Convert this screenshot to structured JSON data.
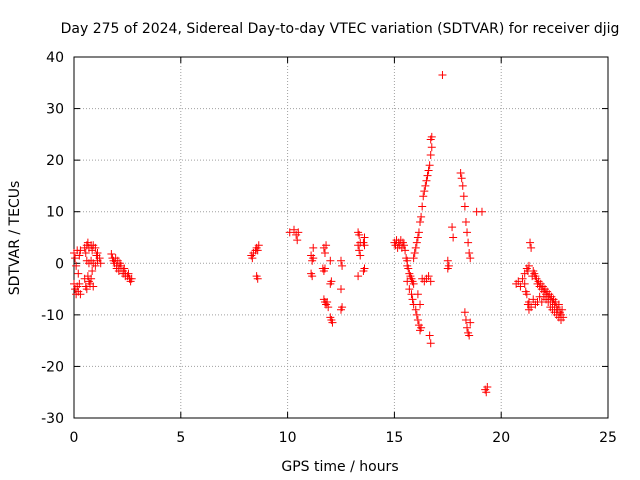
{
  "chart_data": {
    "type": "scatter",
    "title": "Day 275 of 2024, Sidereal Day-to-day VTEC variation (SDTVAR) for receiver djig",
    "xlabel": "GPS time / hours",
    "ylabel": "SDTVAR / TECUs",
    "xlim": [
      0,
      25
    ],
    "ylim": [
      -30,
      40
    ],
    "x_ticks": [
      0,
      5,
      10,
      15,
      20,
      25
    ],
    "y_ticks": [
      -30,
      -20,
      -10,
      0,
      10,
      20,
      30,
      40
    ],
    "grid": true,
    "marker": "plus",
    "colors": {
      "points": "#ff0000",
      "grid": "#a0a0a0",
      "axes": "#000000"
    },
    "series": [
      {
        "name": "SDTVAR",
        "points": [
          [
            0.0,
            2.0
          ],
          [
            0.05,
            1.0
          ],
          [
            0.1,
            -0.5
          ],
          [
            0.15,
            2.5
          ],
          [
            0.2,
            -2.0
          ],
          [
            0.25,
            1.5
          ],
          [
            0.3,
            2.5
          ],
          [
            0.0,
            -4.0
          ],
          [
            0.05,
            -5.0
          ],
          [
            0.1,
            -6.0
          ],
          [
            0.15,
            -4.5
          ],
          [
            0.2,
            -5.5
          ],
          [
            0.25,
            -4.0
          ],
          [
            0.3,
            -6.0
          ],
          [
            0.5,
            -3.0
          ],
          [
            0.55,
            -4.5
          ],
          [
            0.6,
            -5.0
          ],
          [
            0.65,
            -2.5
          ],
          [
            0.7,
            -3.5
          ],
          [
            0.75,
            -4.0
          ],
          [
            0.8,
            -3.0
          ],
          [
            0.85,
            -1.5
          ],
          [
            0.9,
            -4.5
          ],
          [
            0.5,
            3.0
          ],
          [
            0.55,
            2.0
          ],
          [
            0.6,
            3.5
          ],
          [
            0.65,
            4.0
          ],
          [
            0.7,
            3.0
          ],
          [
            0.8,
            3.5
          ],
          [
            0.85,
            2.5
          ],
          [
            0.9,
            3.5
          ],
          [
            1.0,
            3.0
          ],
          [
            1.05,
            1.5
          ],
          [
            1.1,
            2.0
          ],
          [
            0.6,
            0.5
          ],
          [
            0.7,
            0.0
          ],
          [
            0.8,
            0.5
          ],
          [
            0.9,
            0.0
          ],
          [
            1.0,
            -0.5
          ],
          [
            1.1,
            0.5
          ],
          [
            1.2,
            1.0
          ],
          [
            1.25,
            0.0
          ],
          [
            1.75,
            1.8
          ],
          [
            1.8,
            1.0
          ],
          [
            1.85,
            0.5
          ],
          [
            1.9,
            0.0
          ],
          [
            1.95,
            1.0
          ],
          [
            2.0,
            -0.5
          ],
          [
            2.05,
            0.5
          ],
          [
            2.1,
            -1.0
          ],
          [
            2.15,
            0.0
          ],
          [
            2.2,
            -0.5
          ],
          [
            2.3,
            -1.5
          ],
          [
            2.35,
            -1.0
          ],
          [
            2.4,
            -2.0
          ],
          [
            2.5,
            -2.5
          ],
          [
            2.55,
            -2.0
          ],
          [
            2.6,
            -3.0
          ],
          [
            2.65,
            -3.5
          ],
          [
            2.7,
            -3.0
          ],
          [
            2.0,
            -1.0
          ],
          [
            2.1,
            -1.5
          ],
          [
            2.2,
            -1.0
          ],
          [
            2.3,
            -2.0
          ],
          [
            2.4,
            -2.5
          ],
          [
            8.3,
            1.5
          ],
          [
            8.35,
            1.0
          ],
          [
            8.4,
            2.0
          ],
          [
            8.5,
            2.5
          ],
          [
            8.55,
            3.0
          ],
          [
            8.6,
            2.5
          ],
          [
            8.65,
            3.5
          ],
          [
            8.55,
            -2.5
          ],
          [
            8.6,
            -3.0
          ],
          [
            10.1,
            6.0
          ],
          [
            10.3,
            6.5
          ],
          [
            10.4,
            5.5
          ],
          [
            10.5,
            6.0
          ],
          [
            10.45,
            4.5
          ],
          [
            11.1,
            1.5
          ],
          [
            11.15,
            0.5
          ],
          [
            11.2,
            1.0
          ],
          [
            11.1,
            -2.0
          ],
          [
            11.15,
            -2.5
          ],
          [
            11.2,
            3.0
          ],
          [
            11.7,
            3.0
          ],
          [
            11.75,
            2.0
          ],
          [
            11.8,
            3.5
          ],
          [
            11.65,
            -1.0
          ],
          [
            11.7,
            -1.5
          ],
          [
            11.75,
            -1.0
          ],
          [
            11.7,
            -7.0
          ],
          [
            11.75,
            -7.5
          ],
          [
            11.8,
            -8.0
          ],
          [
            11.85,
            -7.5
          ],
          [
            11.9,
            -8.5
          ],
          [
            12.0,
            -4.0
          ],
          [
            12.05,
            -3.5
          ],
          [
            12.0,
            0.5
          ],
          [
            12.05,
            -11.0
          ],
          [
            12.1,
            -11.5
          ],
          [
            12.0,
            -10.5
          ],
          [
            12.5,
            0.5
          ],
          [
            12.55,
            -0.5
          ],
          [
            12.5,
            -5.0
          ],
          [
            12.55,
            -8.5
          ],
          [
            12.5,
            -9.0
          ],
          [
            13.3,
            6.0
          ],
          [
            13.35,
            5.5
          ],
          [
            13.4,
            4.0
          ],
          [
            13.3,
            3.5
          ],
          [
            13.35,
            2.5
          ],
          [
            13.4,
            1.5
          ],
          [
            13.3,
            -2.5
          ],
          [
            13.6,
            5.0
          ],
          [
            13.55,
            4.0
          ],
          [
            13.6,
            3.5
          ],
          [
            13.6,
            -1.0
          ],
          [
            13.55,
            -1.5
          ],
          [
            15.0,
            4.0
          ],
          [
            15.05,
            3.5
          ],
          [
            15.1,
            4.5
          ],
          [
            15.15,
            3.0
          ],
          [
            15.2,
            4.0
          ],
          [
            15.25,
            3.5
          ],
          [
            15.3,
            4.5
          ],
          [
            15.35,
            3.0
          ],
          [
            15.4,
            4.0
          ],
          [
            15.45,
            3.5
          ],
          [
            15.5,
            2.5
          ],
          [
            15.55,
            1.0
          ],
          [
            15.6,
            0.5
          ],
          [
            15.6,
            -0.5
          ],
          [
            15.65,
            -1.0
          ],
          [
            15.7,
            -2.0
          ],
          [
            15.75,
            -2.5
          ],
          [
            15.8,
            -3.0
          ],
          [
            15.85,
            -3.5
          ],
          [
            15.9,
            -4.0
          ],
          [
            15.6,
            -3.5
          ],
          [
            15.7,
            -5.0
          ],
          [
            15.8,
            -6.0
          ],
          [
            15.85,
            -7.0
          ],
          [
            15.9,
            -8.0
          ],
          [
            15.9,
            1.0
          ],
          [
            15.95,
            2.0
          ],
          [
            16.0,
            3.0
          ],
          [
            16.05,
            4.0
          ],
          [
            16.1,
            5.0
          ],
          [
            16.15,
            6.0
          ],
          [
            16.2,
            8.0
          ],
          [
            16.25,
            9.0
          ],
          [
            16.3,
            11.0
          ],
          [
            16.35,
            13.0
          ],
          [
            16.4,
            14.0
          ],
          [
            16.45,
            15.0
          ],
          [
            16.5,
            16.0
          ],
          [
            16.55,
            17.0
          ],
          [
            16.6,
            18.0
          ],
          [
            16.65,
            19.0
          ],
          [
            16.7,
            21.0
          ],
          [
            16.75,
            22.5
          ],
          [
            16.7,
            24.0
          ],
          [
            16.75,
            24.5
          ],
          [
            16.0,
            -9.0
          ],
          [
            16.05,
            -10.0
          ],
          [
            16.1,
            -11.0
          ],
          [
            16.15,
            -12.0
          ],
          [
            16.2,
            -13.0
          ],
          [
            16.25,
            -12.5
          ],
          [
            16.1,
            -6.0
          ],
          [
            16.2,
            -8.0
          ],
          [
            16.3,
            -3.0
          ],
          [
            16.4,
            -3.5
          ],
          [
            16.5,
            -3.0
          ],
          [
            16.6,
            -2.5
          ],
          [
            16.7,
            -3.5
          ],
          [
            16.65,
            -14.0
          ],
          [
            16.7,
            -15.5
          ],
          [
            17.25,
            36.5
          ],
          [
            17.5,
            0.5
          ],
          [
            17.55,
            -0.5
          ],
          [
            17.5,
            -1.0
          ],
          [
            17.7,
            7.0
          ],
          [
            17.75,
            5.0
          ],
          [
            18.1,
            17.5
          ],
          [
            18.15,
            16.5
          ],
          [
            18.2,
            15.0
          ],
          [
            18.25,
            13.0
          ],
          [
            18.3,
            11.0
          ],
          [
            18.35,
            8.0
          ],
          [
            18.4,
            6.0
          ],
          [
            18.45,
            4.0
          ],
          [
            18.5,
            2.0
          ],
          [
            18.55,
            1.0
          ],
          [
            18.3,
            -9.5
          ],
          [
            18.35,
            -11.0
          ],
          [
            18.4,
            -12.5
          ],
          [
            18.45,
            -13.5
          ],
          [
            18.5,
            -14.0
          ],
          [
            18.55,
            -11.5
          ],
          [
            18.85,
            10.0
          ],
          [
            19.1,
            10.0
          ],
          [
            19.25,
            -24.5
          ],
          [
            19.3,
            -25.0
          ],
          [
            19.35,
            -24.0
          ],
          [
            20.7,
            -4.0
          ],
          [
            20.8,
            -3.5
          ],
          [
            20.9,
            -4.5
          ],
          [
            21.0,
            -3.0
          ],
          [
            21.1,
            -4.0
          ],
          [
            21.15,
            -5.5
          ],
          [
            21.2,
            -6.0
          ],
          [
            21.25,
            -8.0
          ],
          [
            21.3,
            -9.0
          ],
          [
            21.1,
            -2.0
          ],
          [
            21.2,
            -1.0
          ],
          [
            21.25,
            -1.5
          ],
          [
            21.3,
            -0.5
          ],
          [
            21.35,
            4.0
          ],
          [
            21.4,
            3.0
          ],
          [
            21.45,
            -2.5
          ],
          [
            21.5,
            -1.5
          ],
          [
            21.55,
            -2.0
          ],
          [
            21.6,
            -2.5
          ],
          [
            21.65,
            -3.0
          ],
          [
            21.7,
            -4.0
          ],
          [
            21.75,
            -3.5
          ],
          [
            21.8,
            -4.5
          ],
          [
            21.85,
            -4.0
          ],
          [
            21.9,
            -5.0
          ],
          [
            21.95,
            -4.5
          ],
          [
            22.0,
            -5.5
          ],
          [
            22.05,
            -5.0
          ],
          [
            22.1,
            -6.0
          ],
          [
            22.15,
            -5.5
          ],
          [
            22.2,
            -6.5
          ],
          [
            22.25,
            -6.0
          ],
          [
            22.3,
            -7.0
          ],
          [
            22.35,
            -6.5
          ],
          [
            22.4,
            -7.5
          ],
          [
            22.45,
            -7.0
          ],
          [
            22.5,
            -8.0
          ],
          [
            22.55,
            -7.5
          ],
          [
            22.6,
            -8.5
          ],
          [
            22.65,
            -9.0
          ],
          [
            22.7,
            -8.0
          ],
          [
            22.75,
            -9.5
          ],
          [
            22.8,
            -10.0
          ],
          [
            22.85,
            -9.0
          ],
          [
            22.9,
            -10.5
          ],
          [
            21.8,
            -6.5
          ],
          [
            21.9,
            -7.5
          ],
          [
            22.0,
            -6.5
          ],
          [
            22.1,
            -7.0
          ],
          [
            22.2,
            -7.5
          ],
          [
            22.3,
            -8.5
          ],
          [
            22.4,
            -9.0
          ],
          [
            22.5,
            -9.5
          ],
          [
            22.6,
            -10.0
          ],
          [
            22.7,
            -10.5
          ],
          [
            22.8,
            -11.0
          ],
          [
            21.5,
            -7.0
          ],
          [
            21.6,
            -8.0
          ],
          [
            21.7,
            -7.5
          ],
          [
            21.4,
            -8.5
          ],
          [
            21.3,
            -7.5
          ]
        ]
      }
    ]
  }
}
